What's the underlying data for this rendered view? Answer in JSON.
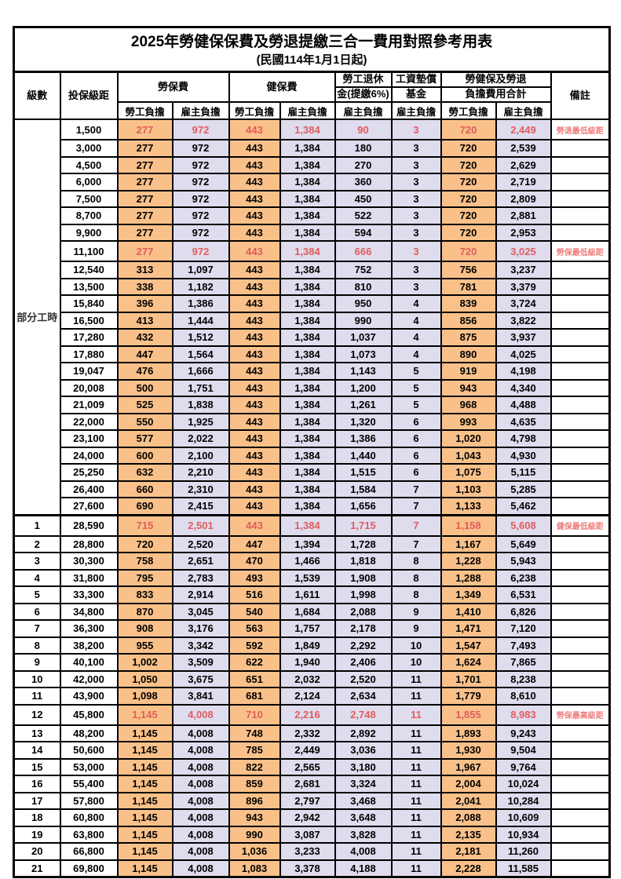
{
  "title": "2025年勞健保保費及勞退提繳三合一費用對照參考用表",
  "subtitle": "(民國114年1月1日起)",
  "colors": {
    "employee_fill": "#F9C189",
    "employer_fill": "#DFDCEE",
    "highlight_text": "#E05C5C",
    "remark_text": "#F07E7E",
    "border": "#000000"
  },
  "header": {
    "level": "級數",
    "bracket": "投保級距",
    "labor_insurance": "勞保費",
    "health_insurance": "健保費",
    "pension_line1": "勞工退休",
    "pension_line2": "金(提繳6%)",
    "wage_fund_line1": "工資墊償",
    "wage_fund_line2": "基金",
    "total_line1": "勞健保及勞退",
    "total_line2": "負擔費用合計",
    "remark": "備註",
    "employee_share": "勞工負擔",
    "employer_share": "雇主負擔"
  },
  "table": {
    "group_label": "部分工時",
    "group_row_span": 23,
    "fields": [
      "level",
      "bracket",
      "labor_emp",
      "labor_er",
      "health_emp",
      "health_er",
      "pension_er",
      "wage_fund_er",
      "total_emp",
      "total_er",
      "remark",
      "highlight"
    ],
    "rows": [
      [
        "",
        "1,500",
        "277",
        "972",
        "443",
        "1,384",
        "90",
        "3",
        "720",
        "2,449",
        "勞退最低級距",
        true
      ],
      [
        "",
        "3,000",
        "277",
        "972",
        "443",
        "1,384",
        "180",
        "3",
        "720",
        "2,539",
        "",
        false
      ],
      [
        "",
        "4,500",
        "277",
        "972",
        "443",
        "1,384",
        "270",
        "3",
        "720",
        "2,629",
        "",
        false
      ],
      [
        "",
        "6,000",
        "277",
        "972",
        "443",
        "1,384",
        "360",
        "3",
        "720",
        "2,719",
        "",
        false
      ],
      [
        "",
        "7,500",
        "277",
        "972",
        "443",
        "1,384",
        "450",
        "3",
        "720",
        "2,809",
        "",
        false
      ],
      [
        "",
        "8,700",
        "277",
        "972",
        "443",
        "1,384",
        "522",
        "3",
        "720",
        "2,881",
        "",
        false
      ],
      [
        "",
        "9,900",
        "277",
        "972",
        "443",
        "1,384",
        "594",
        "3",
        "720",
        "2,953",
        "",
        false
      ],
      [
        "",
        "11,100",
        "277",
        "972",
        "443",
        "1,384",
        "666",
        "3",
        "720",
        "3,025",
        "勞保最低級距",
        true
      ],
      [
        "",
        "12,540",
        "313",
        "1,097",
        "443",
        "1,384",
        "752",
        "3",
        "756",
        "3,237",
        "",
        false
      ],
      [
        "",
        "13,500",
        "338",
        "1,182",
        "443",
        "1,384",
        "810",
        "3",
        "781",
        "3,379",
        "",
        false
      ],
      [
        "",
        "15,840",
        "396",
        "1,386",
        "443",
        "1,384",
        "950",
        "4",
        "839",
        "3,724",
        "",
        false
      ],
      [
        "",
        "16,500",
        "413",
        "1,444",
        "443",
        "1,384",
        "990",
        "4",
        "856",
        "3,822",
        "",
        false
      ],
      [
        "",
        "17,280",
        "432",
        "1,512",
        "443",
        "1,384",
        "1,037",
        "4",
        "875",
        "3,937",
        "",
        false
      ],
      [
        "",
        "17,880",
        "447",
        "1,564",
        "443",
        "1,384",
        "1,073",
        "4",
        "890",
        "4,025",
        "",
        false
      ],
      [
        "",
        "19,047",
        "476",
        "1,666",
        "443",
        "1,384",
        "1,143",
        "5",
        "919",
        "4,198",
        "",
        false
      ],
      [
        "",
        "20,008",
        "500",
        "1,751",
        "443",
        "1,384",
        "1,200",
        "5",
        "943",
        "4,340",
        "",
        false
      ],
      [
        "",
        "21,009",
        "525",
        "1,838",
        "443",
        "1,384",
        "1,261",
        "5",
        "968",
        "4,488",
        "",
        false
      ],
      [
        "",
        "22,000",
        "550",
        "1,925",
        "443",
        "1,384",
        "1,320",
        "6",
        "993",
        "4,635",
        "",
        false
      ],
      [
        "",
        "23,100",
        "577",
        "2,022",
        "443",
        "1,384",
        "1,386",
        "6",
        "1,020",
        "4,798",
        "",
        false
      ],
      [
        "",
        "24,000",
        "600",
        "2,100",
        "443",
        "1,384",
        "1,440",
        "6",
        "1,043",
        "4,930",
        "",
        false
      ],
      [
        "",
        "25,250",
        "632",
        "2,210",
        "443",
        "1,384",
        "1,515",
        "6",
        "1,075",
        "5,115",
        "",
        false
      ],
      [
        "",
        "26,400",
        "660",
        "2,310",
        "443",
        "1,384",
        "1,584",
        "7",
        "1,103",
        "5,285",
        "",
        false
      ],
      [
        "",
        "27,600",
        "690",
        "2,415",
        "443",
        "1,384",
        "1,656",
        "7",
        "1,133",
        "5,462",
        "",
        false
      ],
      [
        "1",
        "28,590",
        "715",
        "2,501",
        "443",
        "1,384",
        "1,715",
        "7",
        "1,158",
        "5,608",
        "健保最低級距",
        true
      ],
      [
        "2",
        "28,800",
        "720",
        "2,520",
        "447",
        "1,394",
        "1,728",
        "7",
        "1,167",
        "5,649",
        "",
        false
      ],
      [
        "3",
        "30,300",
        "758",
        "2,651",
        "470",
        "1,466",
        "1,818",
        "8",
        "1,228",
        "5,943",
        "",
        false
      ],
      [
        "4",
        "31,800",
        "795",
        "2,783",
        "493",
        "1,539",
        "1,908",
        "8",
        "1,288",
        "6,238",
        "",
        false
      ],
      [
        "5",
        "33,300",
        "833",
        "2,914",
        "516",
        "1,611",
        "1,998",
        "8",
        "1,349",
        "6,531",
        "",
        false
      ],
      [
        "6",
        "34,800",
        "870",
        "3,045",
        "540",
        "1,684",
        "2,088",
        "9",
        "1,410",
        "6,826",
        "",
        false
      ],
      [
        "7",
        "36,300",
        "908",
        "3,176",
        "563",
        "1,757",
        "2,178",
        "9",
        "1,471",
        "7,120",
        "",
        false
      ],
      [
        "8",
        "38,200",
        "955",
        "3,342",
        "592",
        "1,849",
        "2,292",
        "10",
        "1,547",
        "7,493",
        "",
        false
      ],
      [
        "9",
        "40,100",
        "1,002",
        "3,509",
        "622",
        "1,940",
        "2,406",
        "10",
        "1,624",
        "7,865",
        "",
        false
      ],
      [
        "10",
        "42,000",
        "1,050",
        "3,675",
        "651",
        "2,032",
        "2,520",
        "11",
        "1,701",
        "8,238",
        "",
        false
      ],
      [
        "11",
        "43,900",
        "1,098",
        "3,841",
        "681",
        "2,124",
        "2,634",
        "11",
        "1,779",
        "8,610",
        "",
        false
      ],
      [
        "12",
        "45,800",
        "1,145",
        "4,008",
        "710",
        "2,216",
        "2,748",
        "11",
        "1,855",
        "8,983",
        "勞保最高級距",
        true
      ],
      [
        "13",
        "48,200",
        "1,145",
        "4,008",
        "748",
        "2,332",
        "2,892",
        "11",
        "1,893",
        "9,243",
        "",
        false
      ],
      [
        "14",
        "50,600",
        "1,145",
        "4,008",
        "785",
        "2,449",
        "3,036",
        "11",
        "1,930",
        "9,504",
        "",
        false
      ],
      [
        "15",
        "53,000",
        "1,145",
        "4,008",
        "822",
        "2,565",
        "3,180",
        "11",
        "1,967",
        "9,764",
        "",
        false
      ],
      [
        "16",
        "55,400",
        "1,145",
        "4,008",
        "859",
        "2,681",
        "3,324",
        "11",
        "2,004",
        "10,024",
        "",
        false
      ],
      [
        "17",
        "57,800",
        "1,145",
        "4,008",
        "896",
        "2,797",
        "3,468",
        "11",
        "2,041",
        "10,284",
        "",
        false
      ],
      [
        "18",
        "60,800",
        "1,145",
        "4,008",
        "943",
        "2,942",
        "3,648",
        "11",
        "2,088",
        "10,609",
        "",
        false
      ],
      [
        "19",
        "63,800",
        "1,145",
        "4,008",
        "990",
        "3,087",
        "3,828",
        "11",
        "2,135",
        "10,934",
        "",
        false
      ],
      [
        "20",
        "66,800",
        "1,145",
        "4,008",
        "1,036",
        "3,233",
        "4,008",
        "11",
        "2,181",
        "11,260",
        "",
        false
      ],
      [
        "21",
        "69,800",
        "1,145",
        "4,008",
        "1,083",
        "3,378",
        "4,188",
        "11",
        "2,228",
        "11,585",
        "",
        false
      ]
    ]
  }
}
